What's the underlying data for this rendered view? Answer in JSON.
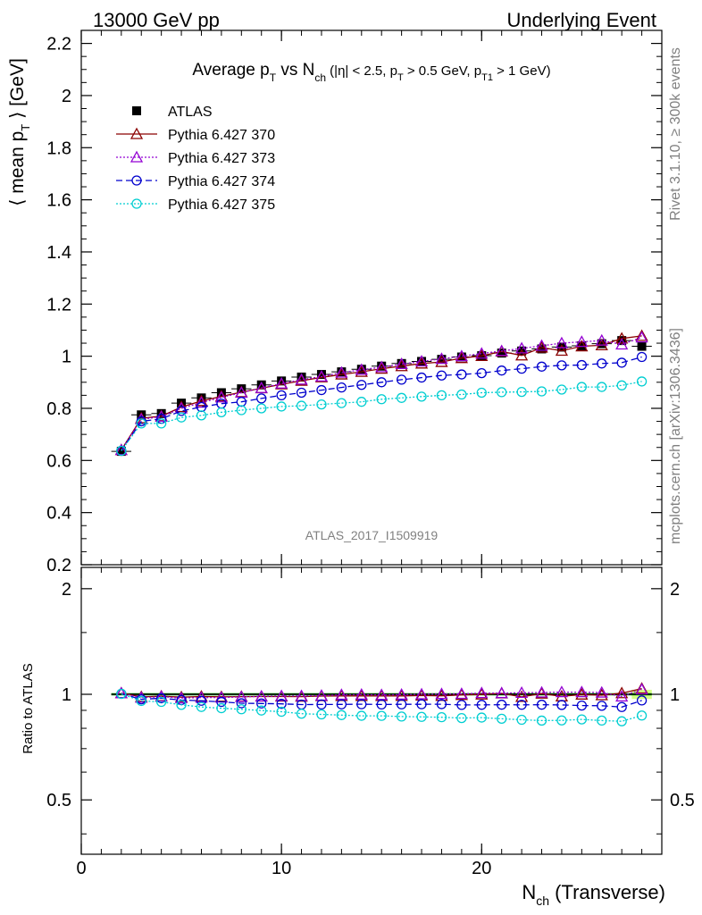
{
  "header": {
    "left": "13000 GeV pp",
    "right": "Underlying Event"
  },
  "side_labels": {
    "rivet": "Rivet 3.1.10, ≥ 300k events",
    "mcplots": "mcplots.cern.ch [arXiv:1306.3436]"
  },
  "chart_data": {
    "type": "scatter",
    "title": {
      "main_a": "Average p",
      "main_a_sub": "T",
      "main_b": " vs N",
      "main_b_sub": "ch",
      "cuts_a": " (|η| < 2.5, p",
      "cuts_a_sub": "T",
      "cuts_b": " > 0.5 GeV, p",
      "cuts_b_sub": "T1",
      "cuts_c": " > 1 GeV)"
    },
    "analysis_label": "ATLAS_2017_I1509919",
    "ylabel": {
      "a": "⟨ mean p",
      "sub": "T",
      "b": " ⟩ [GeV]"
    },
    "ratio_ylabel": "Ratio to ATLAS",
    "xlabel": {
      "a": "N",
      "sub": "ch",
      "b": " (Transverse)"
    },
    "xlim": [
      0,
      29
    ],
    "ylim": [
      0.2,
      2.25
    ],
    "ratio_ylim": [
      0.35,
      2.3
    ],
    "xticks": [
      0,
      10,
      20
    ],
    "yticks": [
      0.2,
      0.4,
      0.6,
      0.8,
      1,
      1.2,
      1.4,
      1.6,
      1.8,
      2,
      2.2
    ],
    "ytick_labels": [
      "0.2",
      "0.4",
      "0.6",
      "0.8",
      "1",
      "1.2",
      "1.4",
      "1.6",
      "1.8",
      "2",
      "2.2"
    ],
    "ratio_yticks": [
      0.5,
      1,
      2
    ],
    "ratio_ytick_labels": [
      "0.5",
      "1",
      "2"
    ],
    "x": [
      2,
      3,
      4,
      5,
      6,
      7,
      8,
      9,
      10,
      11,
      12,
      13,
      14,
      15,
      16,
      17,
      18,
      19,
      20,
      21,
      22,
      23,
      24,
      25,
      26,
      27,
      28
    ],
    "series": [
      {
        "name": "ATLAS",
        "color": "#000000",
        "marker": "square",
        "values": [
          0.635,
          0.775,
          0.78,
          0.82,
          0.84,
          0.86,
          0.875,
          0.89,
          0.905,
          0.92,
          0.93,
          0.94,
          0.95,
          0.962,
          0.972,
          0.98,
          0.988,
          0.997,
          1.002,
          1.012,
          1.02,
          1.028,
          1.035,
          1.04,
          1.048,
          1.06,
          1.038
        ]
      },
      {
        "name": "Pythia 6.427 370",
        "color": "#8b0000",
        "marker": "triangle",
        "line": "solid",
        "values": [
          0.64,
          0.762,
          0.77,
          0.805,
          0.828,
          0.846,
          0.862,
          0.877,
          0.892,
          0.906,
          0.919,
          0.93,
          0.94,
          0.952,
          0.962,
          0.972,
          0.978,
          0.993,
          1.001,
          1.018,
          1.003,
          1.033,
          1.021,
          1.038,
          1.042,
          1.068,
          1.078
        ]
      },
      {
        "name": "Pythia 6.427 373",
        "color": "#9400d3",
        "marker": "triangle",
        "line": "dotted",
        "values": [
          0.64,
          0.758,
          0.768,
          0.8,
          0.822,
          0.842,
          0.86,
          0.878,
          0.895,
          0.91,
          0.922,
          0.937,
          0.948,
          0.958,
          0.97,
          0.98,
          0.99,
          1.0,
          1.01,
          1.02,
          1.03,
          1.04,
          1.05,
          1.055,
          1.06,
          1.045,
          1.072
        ]
      },
      {
        "name": "Pythia 6.427 374",
        "color": "#0000cd",
        "marker": "circle",
        "line": "dashed",
        "values": [
          0.637,
          0.75,
          0.76,
          0.79,
          0.805,
          0.818,
          0.825,
          0.838,
          0.85,
          0.86,
          0.87,
          0.88,
          0.89,
          0.9,
          0.91,
          0.918,
          0.926,
          0.93,
          0.935,
          0.945,
          0.952,
          0.96,
          0.965,
          0.966,
          0.972,
          0.975,
          0.997
        ]
      },
      {
        "name": "Pythia 6.427 375",
        "color": "#00ced1",
        "marker": "circle",
        "line": "dotted",
        "values": [
          0.637,
          0.742,
          0.742,
          0.765,
          0.773,
          0.785,
          0.793,
          0.8,
          0.807,
          0.81,
          0.815,
          0.82,
          0.825,
          0.835,
          0.84,
          0.845,
          0.85,
          0.853,
          0.86,
          0.862,
          0.863,
          0.865,
          0.872,
          0.882,
          0.882,
          0.888,
          0.903
        ]
      }
    ],
    "legend_placement": "top-left"
  }
}
